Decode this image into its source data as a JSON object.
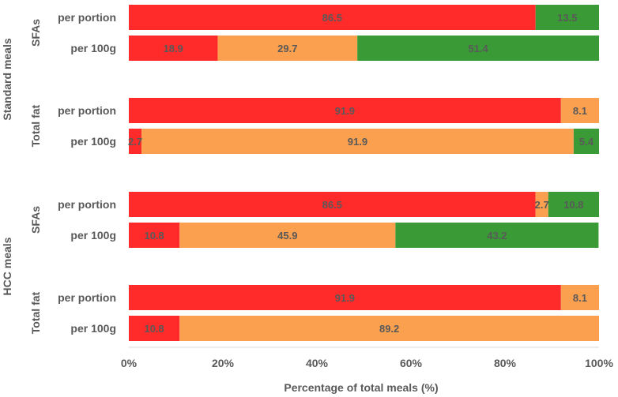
{
  "chart_data": {
    "type": "bar",
    "orientation": "horizontal",
    "stacked": true,
    "xlabel": "Percentage of total meals (%)",
    "xlim": [
      0,
      100
    ],
    "xticks": [
      "0%",
      "20%",
      "40%",
      "60%",
      "80%",
      "100%"
    ],
    "colors": {
      "red": "#ff2b2b",
      "amber": "#fba04f",
      "green": "#3a9a35"
    },
    "outer_groups": [
      {
        "label": "Standard meals",
        "subgroups": [
          {
            "label": "SFAs",
            "bars": [
              {
                "label": "per portion",
                "segments": [
                  {
                    "color": "red",
                    "value": 86.5,
                    "text": "86.5"
                  },
                  {
                    "color": "green",
                    "value": 13.5,
                    "text": "13.5"
                  }
                ]
              },
              {
                "label": "per 100g",
                "segments": [
                  {
                    "color": "red",
                    "value": 18.9,
                    "text": "18.9"
                  },
                  {
                    "color": "amber",
                    "value": 29.7,
                    "text": "29.7"
                  },
                  {
                    "color": "green",
                    "value": 51.4,
                    "text": "51.4"
                  }
                ]
              }
            ]
          },
          {
            "label": "Total fat",
            "bars": [
              {
                "label": "per portion",
                "segments": [
                  {
                    "color": "red",
                    "value": 91.9,
                    "text": "91.9"
                  },
                  {
                    "color": "amber",
                    "value": 8.1,
                    "text": "8.1"
                  }
                ]
              },
              {
                "label": "per 100g",
                "segments": [
                  {
                    "color": "red",
                    "value": 2.7,
                    "text": "2.7"
                  },
                  {
                    "color": "amber",
                    "value": 91.9,
                    "text": "91.9"
                  },
                  {
                    "color": "green",
                    "value": 5.4,
                    "text": "5.4"
                  }
                ]
              }
            ]
          }
        ]
      },
      {
        "label": "HCC meals",
        "subgroups": [
          {
            "label": "SFAs",
            "bars": [
              {
                "label": "per portion",
                "segments": [
                  {
                    "color": "red",
                    "value": 86.5,
                    "text": "86.5"
                  },
                  {
                    "color": "amber",
                    "value": 2.7,
                    "text": "2.7"
                  },
                  {
                    "color": "green",
                    "value": 10.8,
                    "text": "10.8"
                  }
                ]
              },
              {
                "label": "per 100g",
                "segments": [
                  {
                    "color": "red",
                    "value": 10.8,
                    "text": "10.8"
                  },
                  {
                    "color": "amber",
                    "value": 45.9,
                    "text": "45.9"
                  },
                  {
                    "color": "green",
                    "value": 43.2,
                    "text": "43.2"
                  }
                ]
              }
            ]
          },
          {
            "label": "Total fat",
            "bars": [
              {
                "label": "per portion",
                "segments": [
                  {
                    "color": "red",
                    "value": 91.9,
                    "text": "91.9"
                  },
                  {
                    "color": "amber",
                    "value": 8.1,
                    "text": "8.1"
                  }
                ]
              },
              {
                "label": "per 100g",
                "segments": [
                  {
                    "color": "red",
                    "value": 10.8,
                    "text": "10.8"
                  },
                  {
                    "color": "amber",
                    "value": 89.2,
                    "text": "89.2"
                  }
                ]
              }
            ]
          }
        ]
      }
    ]
  }
}
